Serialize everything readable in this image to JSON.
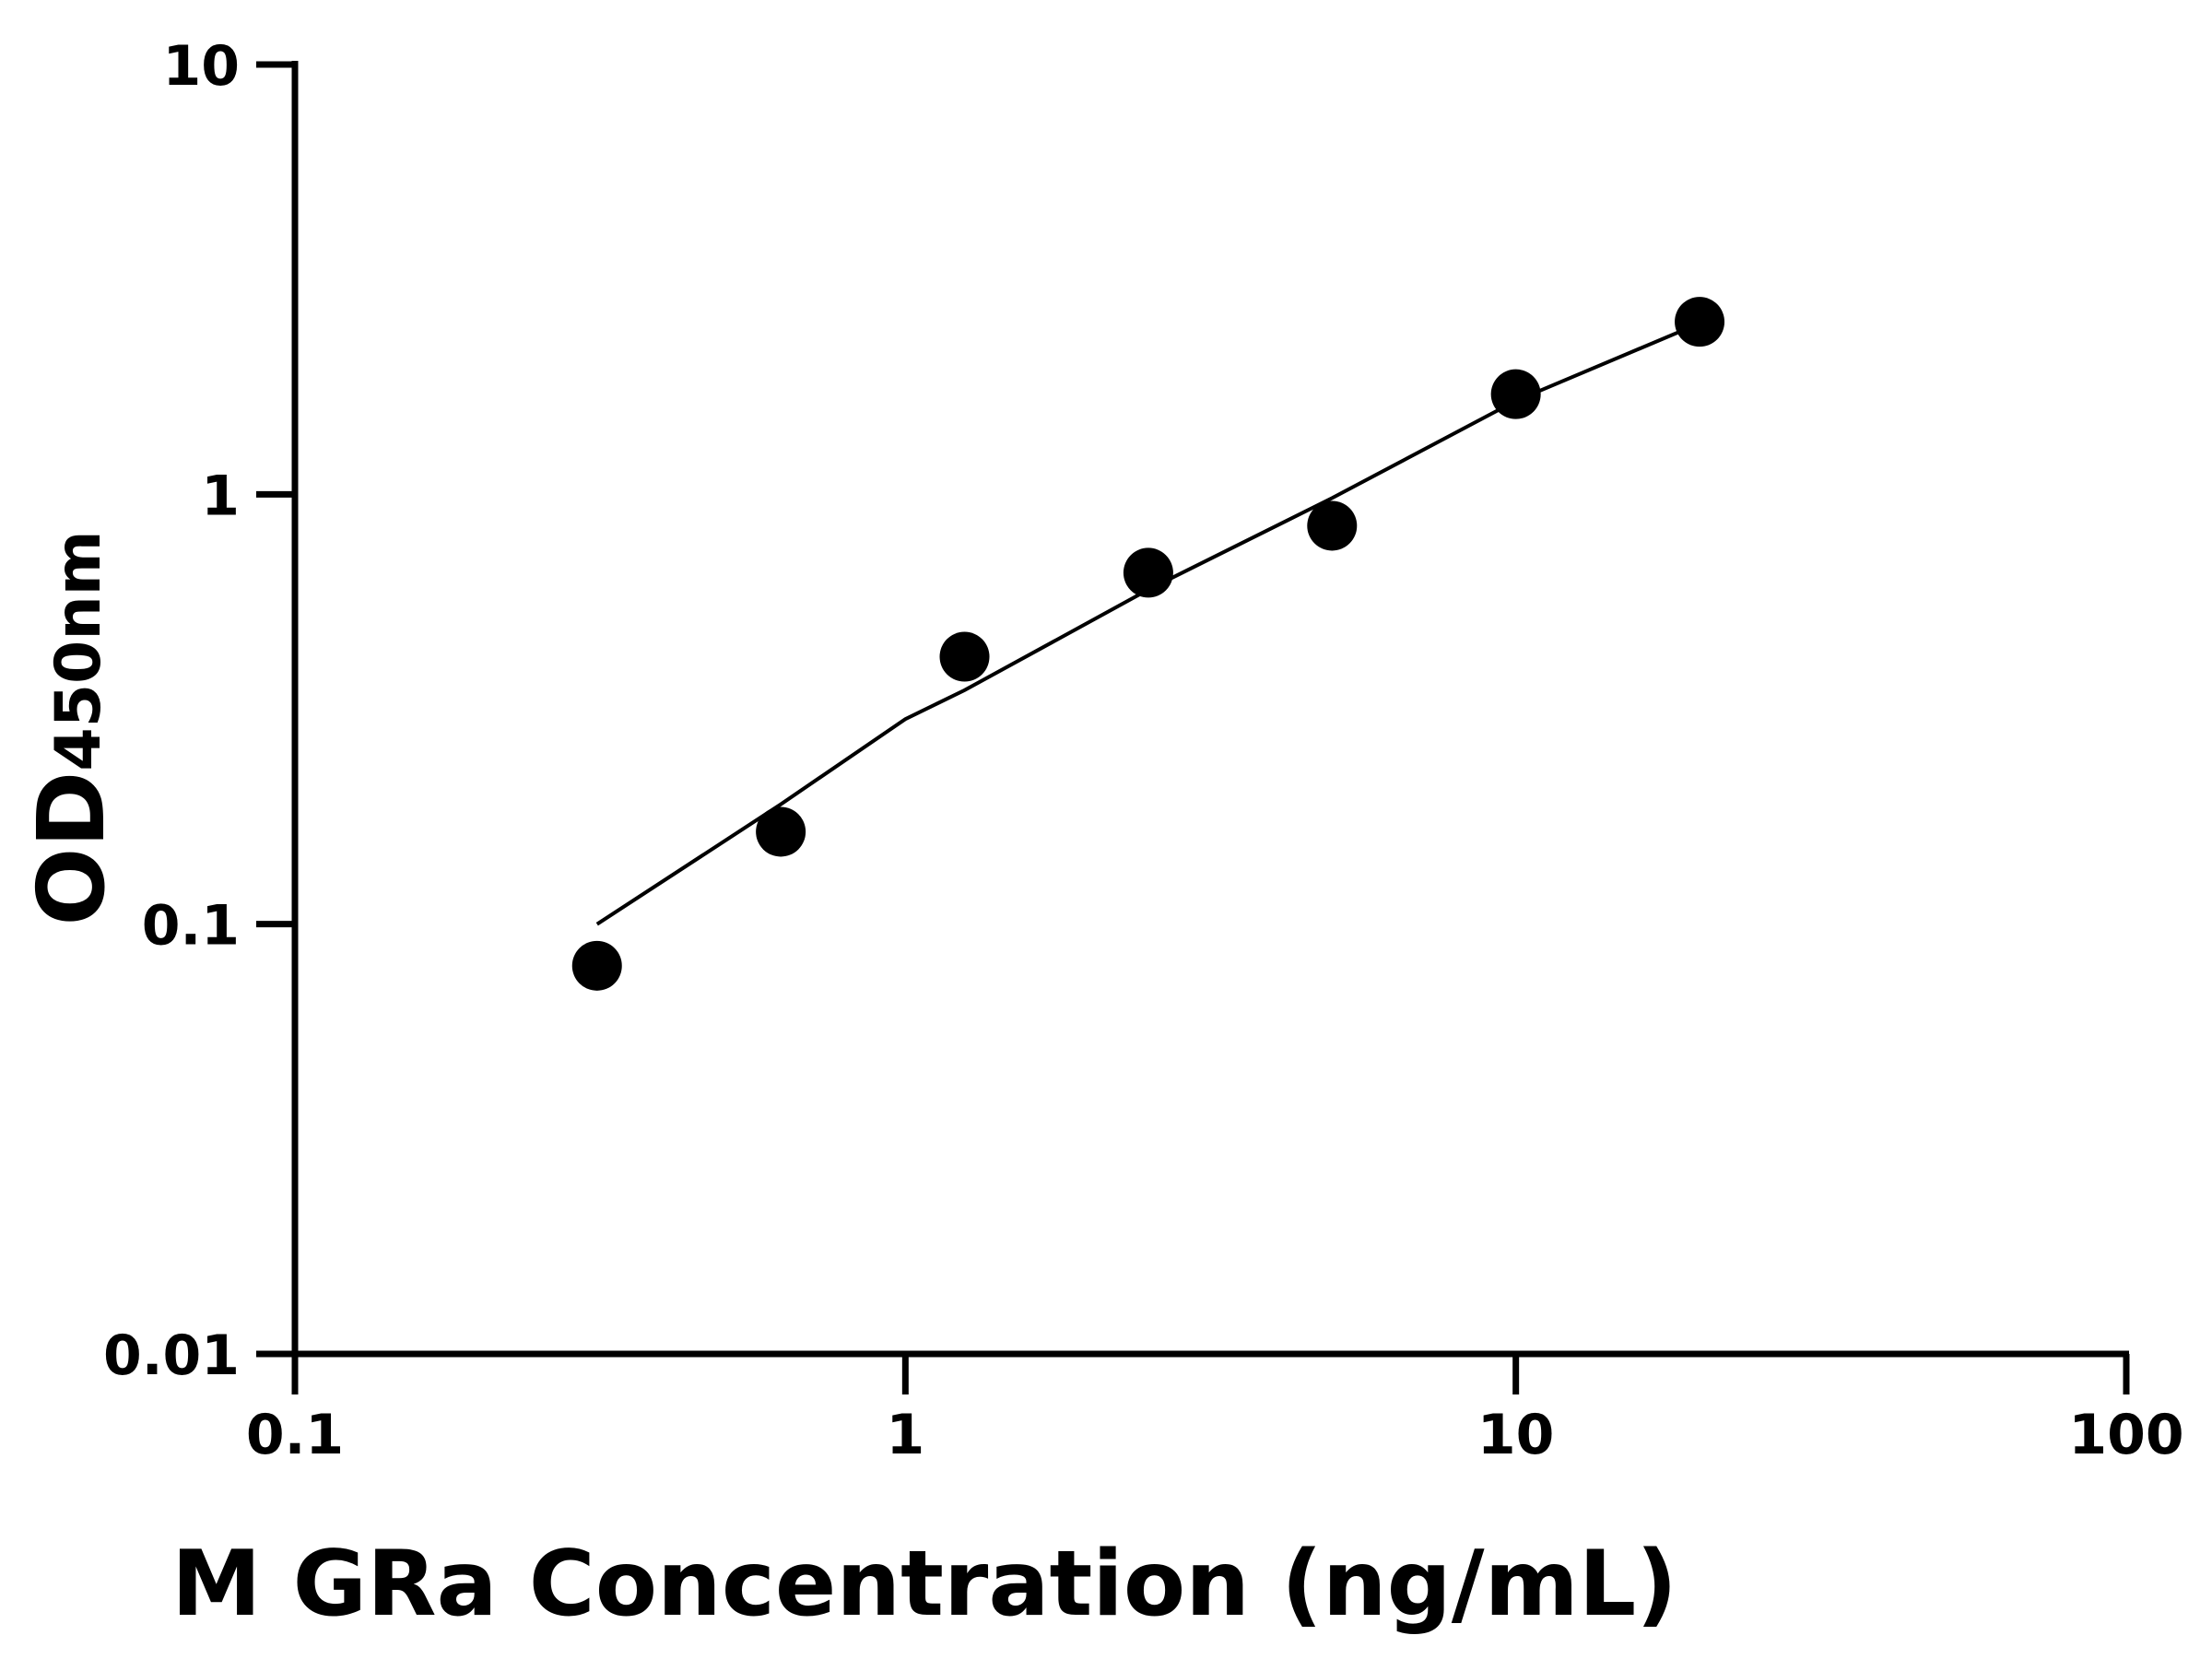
{
  "chart_data": {
    "type": "scatter",
    "title": "",
    "xlabel": "M GRa Concentration (ng/mL)",
    "ylabel_main": "OD",
    "ylabel_sub": "450nm",
    "xscale": "log",
    "yscale": "log",
    "xlim": [
      0.1,
      100
    ],
    "ylim": [
      0.01,
      10
    ],
    "xticks": [
      0.1,
      1,
      10,
      100
    ],
    "xtick_labels": [
      "0.1",
      "1",
      "10",
      "100"
    ],
    "yticks": [
      0.01,
      0.1,
      1,
      10
    ],
    "ytick_labels": [
      "0.01",
      "0.1",
      "1",
      "10"
    ],
    "grid": false,
    "legend": "none",
    "points": {
      "x": [
        0.3125,
        0.625,
        1.25,
        2.5,
        5,
        10,
        20
      ],
      "y": [
        0.08,
        0.164,
        0.419,
        0.657,
        0.845,
        1.71,
        2.52
      ]
    },
    "fit_curve": {
      "x": [
        0.3125,
        0.625,
        1,
        1.25,
        2.5,
        5,
        10,
        20
      ],
      "y": [
        0.1,
        0.19,
        0.3,
        0.35,
        0.6,
        0.98,
        1.65,
        2.5
      ]
    },
    "colors": {
      "marker": "#000000",
      "line": "#000000",
      "axis": "#000000"
    }
  }
}
